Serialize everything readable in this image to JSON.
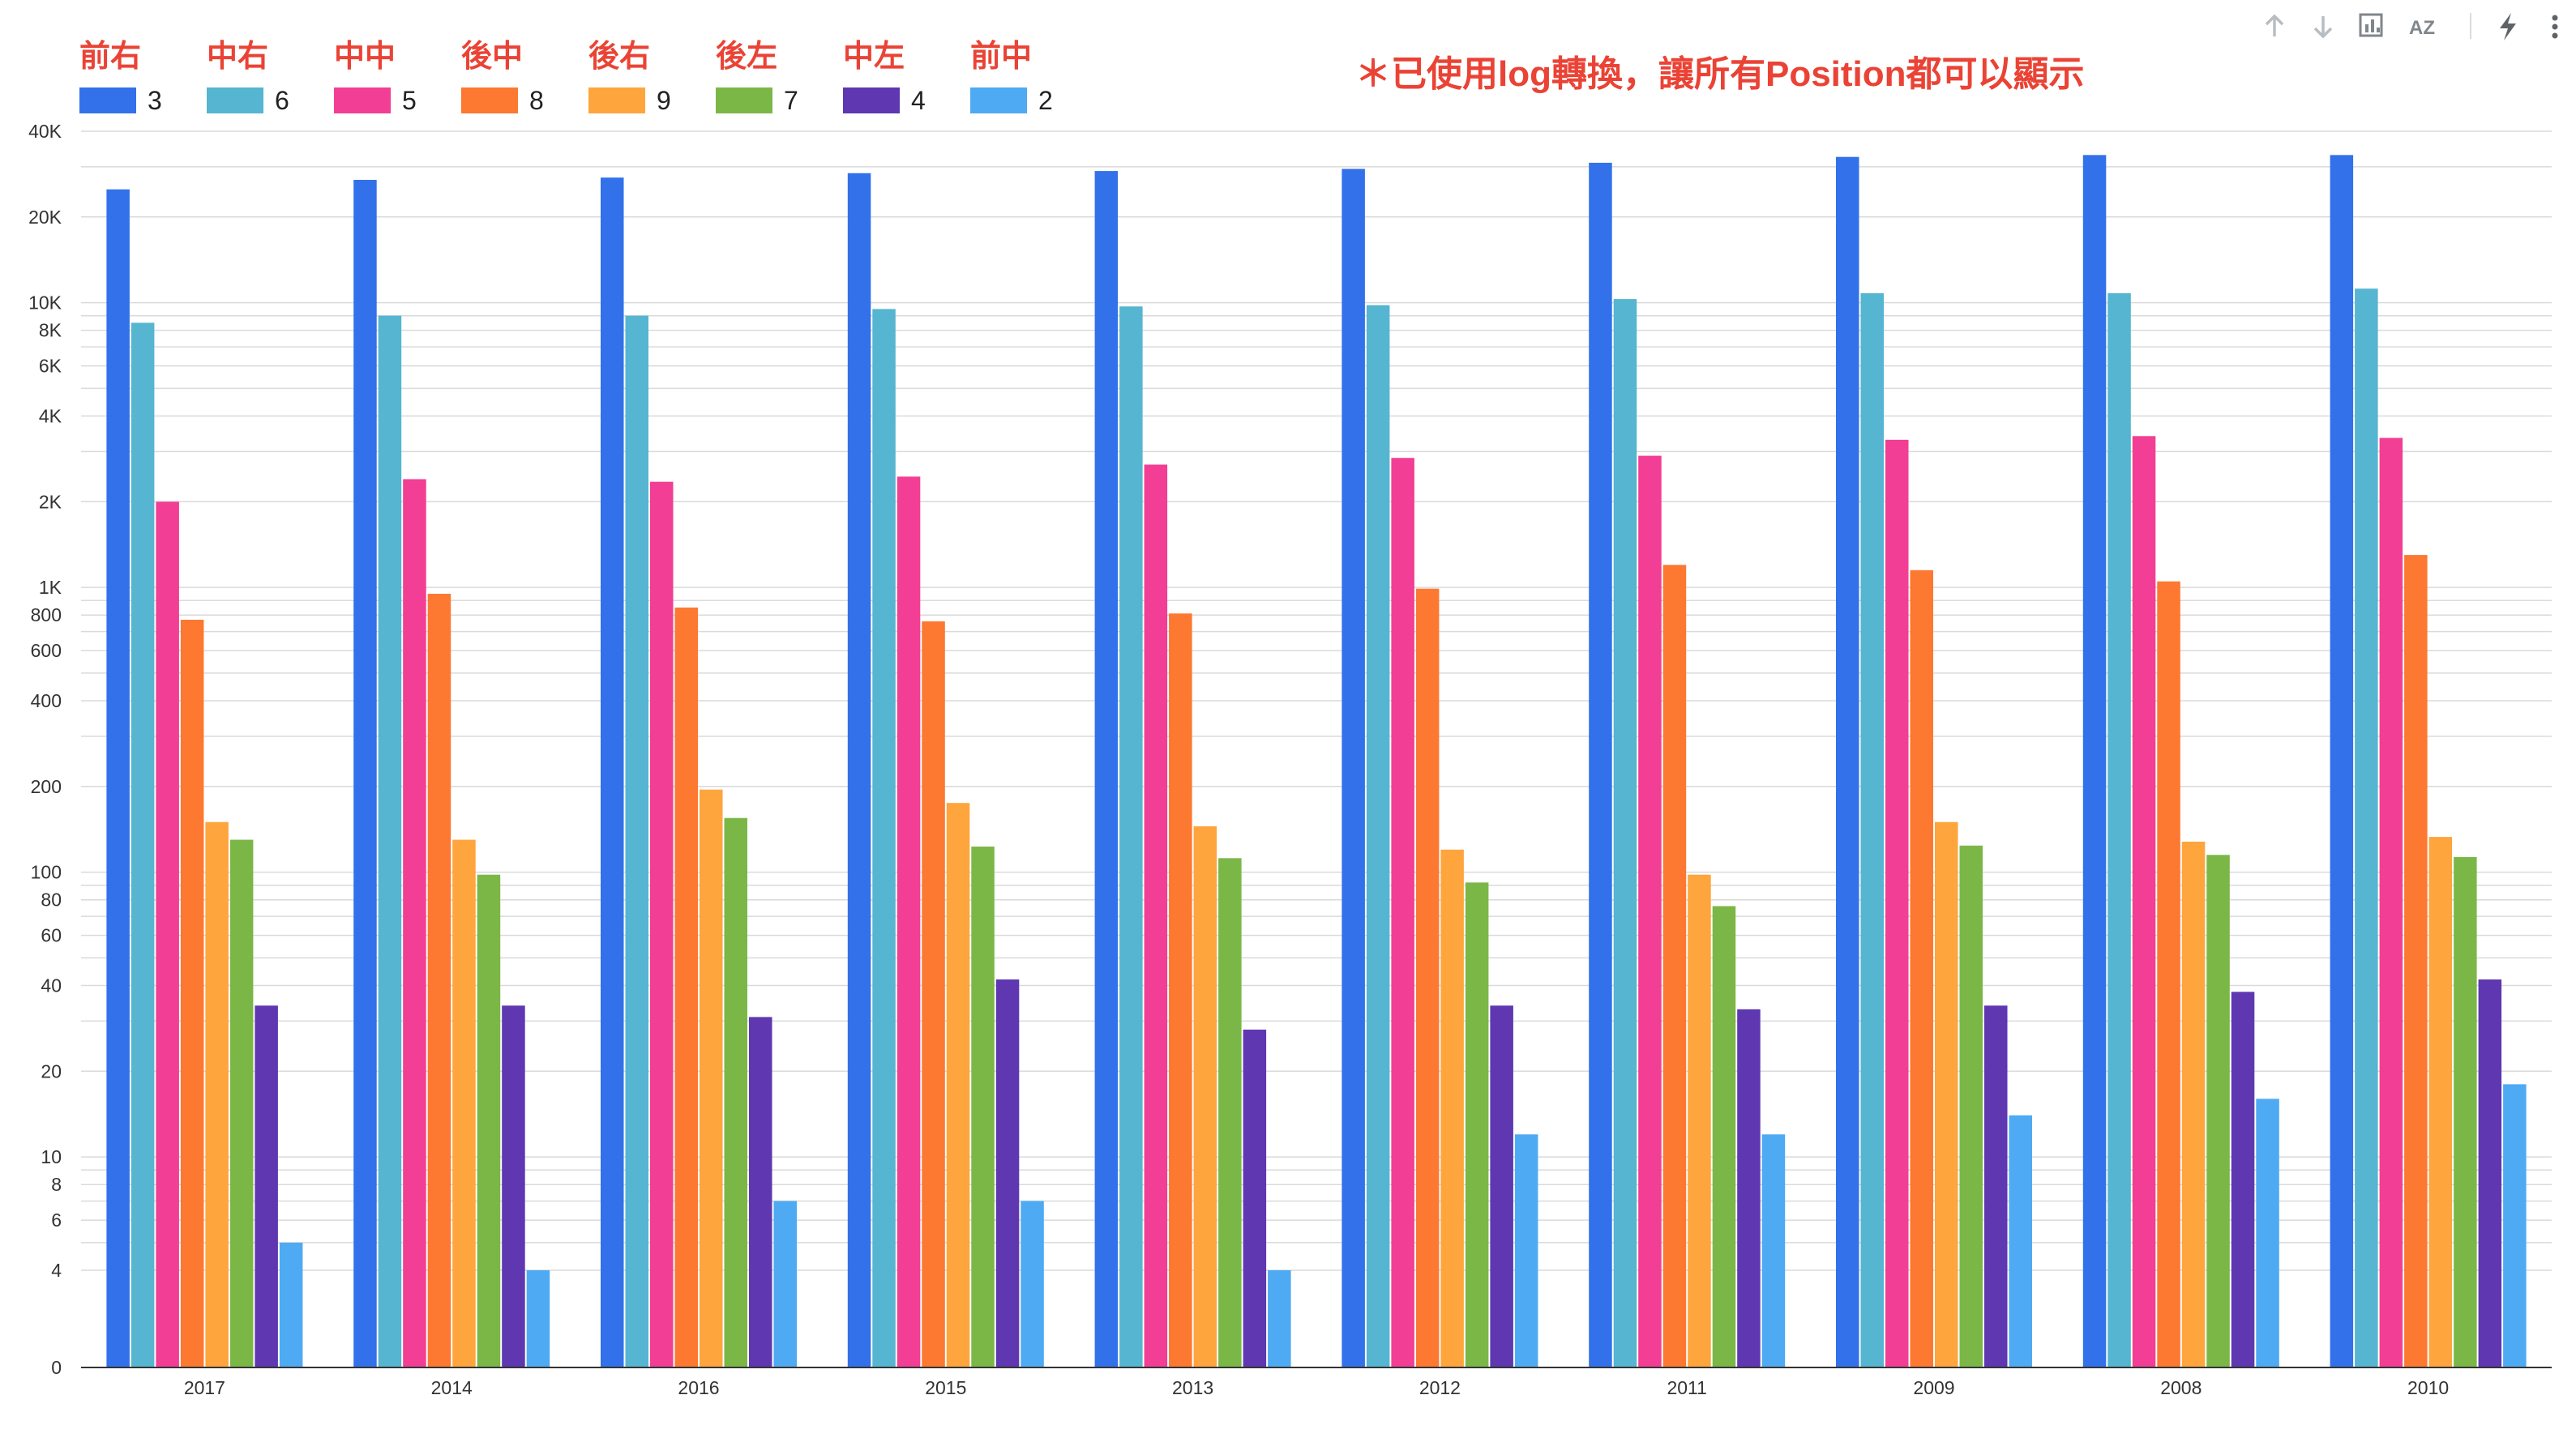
{
  "toolbar": {
    "sort_ascending_icon": "arrow-up-icon",
    "sort_descending_icon": "arrow-down-icon",
    "chart_options_icon": "chart-icon",
    "sort_az_icon": "az-sort-icon",
    "sort_az_label": "AZ",
    "quick_insights_icon": "lightning-icon",
    "more_icon": "more-vertical-icon"
  },
  "note": "＊已使用log轉換，讓所有Position都可以顯示",
  "chart_data": {
    "type": "bar",
    "scale": "log",
    "ylim": [
      0,
      40000
    ],
    "yticks": [
      {
        "value": 0,
        "label": "0"
      },
      {
        "value": 4,
        "label": "4"
      },
      {
        "value": 6,
        "label": "6"
      },
      {
        "value": 8,
        "label": "8"
      },
      {
        "value": 10,
        "label": "10"
      },
      {
        "value": 20,
        "label": "20"
      },
      {
        "value": 40,
        "label": "40"
      },
      {
        "value": 60,
        "label": "60"
      },
      {
        "value": 80,
        "label": "80"
      },
      {
        "value": 100,
        "label": "100"
      },
      {
        "value": 200,
        "label": "200"
      },
      {
        "value": 400,
        "label": "400"
      },
      {
        "value": 600,
        "label": "600"
      },
      {
        "value": 800,
        "label": "800"
      },
      {
        "value": 1000,
        "label": "1K"
      },
      {
        "value": 2000,
        "label": "2K"
      },
      {
        "value": 4000,
        "label": "4K"
      },
      {
        "value": 6000,
        "label": "6K"
      },
      {
        "value": 8000,
        "label": "8K"
      },
      {
        "value": 10000,
        "label": "10K"
      },
      {
        "value": 20000,
        "label": "20K"
      },
      {
        "value": 40000,
        "label": "40K"
      }
    ],
    "grid": true,
    "legend_position": "top-left",
    "categories": [
      "2017",
      "2014",
      "2016",
      "2015",
      "2013",
      "2012",
      "2011",
      "2009",
      "2008",
      "2010"
    ],
    "series": [
      {
        "name": "前右",
        "code": "3",
        "color": "#3271ea",
        "values": [
          25000,
          27000,
          27500,
          28500,
          29000,
          29500,
          31000,
          32500,
          33000,
          33000
        ]
      },
      {
        "name": "中右",
        "code": "6",
        "color": "#56b5d0",
        "values": [
          8500,
          9000,
          9000,
          9500,
          9700,
          9800,
          10300,
          10800,
          10800,
          11200
        ]
      },
      {
        "name": "中中",
        "code": "5",
        "color": "#f23e94",
        "values": [
          2000,
          2400,
          2350,
          2450,
          2700,
          2850,
          2900,
          3300,
          3400,
          3350
        ]
      },
      {
        "name": "後中",
        "code": "8",
        "color": "#fd7831",
        "values": [
          770,
          950,
          850,
          760,
          810,
          990,
          1200,
          1150,
          1050,
          1300
        ]
      },
      {
        "name": "後右",
        "code": "9",
        "color": "#fea53e",
        "values": [
          150,
          130,
          195,
          175,
          145,
          120,
          98,
          150,
          128,
          133
        ]
      },
      {
        "name": "後左",
        "code": "7",
        "color": "#7bb747",
        "values": [
          130,
          98,
          155,
          123,
          112,
          92,
          76,
          124,
          115,
          113
        ]
      },
      {
        "name": "中左",
        "code": "4",
        "color": "#5e37b1",
        "values": [
          34,
          34,
          31,
          42,
          28,
          34,
          33,
          34,
          38,
          42
        ]
      },
      {
        "name": "前中",
        "code": "2",
        "color": "#4eaaf3",
        "values": [
          5,
          4,
          7,
          7,
          4,
          12,
          12,
          14,
          16,
          18
        ]
      }
    ]
  }
}
